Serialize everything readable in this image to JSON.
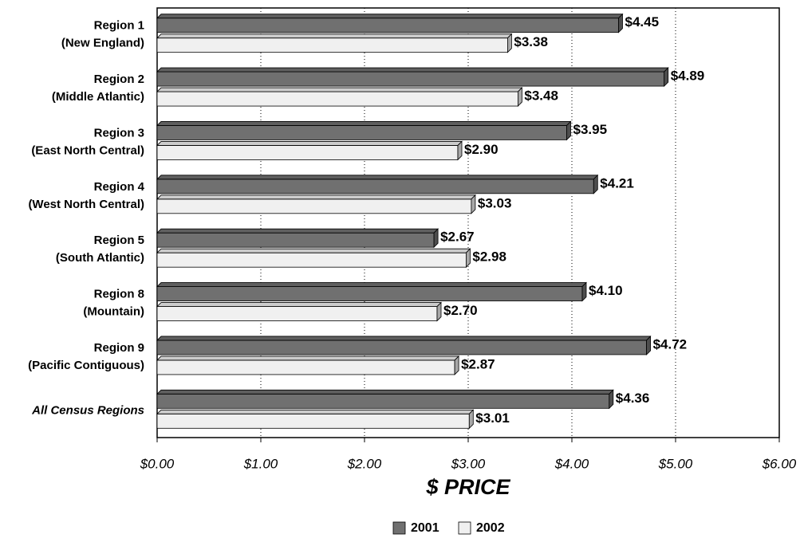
{
  "chart_data": {
    "type": "bar",
    "orientation": "horizontal",
    "x_label": "$ PRICE",
    "categories": [
      [
        "Region 1",
        "(New England)"
      ],
      [
        "Region 2",
        "(Middle Atlantic)"
      ],
      [
        "Region 3",
        "(East North Central)"
      ],
      [
        "Region 4",
        "(West North Central)"
      ],
      [
        "Region 5",
        "(South Atlantic)"
      ],
      [
        "Region 8",
        "(Mountain)"
      ],
      [
        "Region 9",
        "(Pacific Contiguous)"
      ],
      [
        "All Census Regions"
      ]
    ],
    "series": [
      {
        "name": "2001",
        "color": "#707070",
        "values": [
          4.45,
          4.89,
          3.95,
          4.21,
          2.67,
          4.1,
          4.72,
          4.36
        ],
        "value_labels": [
          "$4.45",
          "$4.89",
          "$3.95",
          "$4.21",
          "$2.67",
          "$4.10",
          "$4.72",
          "$4.36"
        ]
      },
      {
        "name": "2002",
        "color": "#f0f0f0",
        "values": [
          3.38,
          3.48,
          2.9,
          3.03,
          2.98,
          2.7,
          2.87,
          3.01
        ],
        "value_labels": [
          "$3.38",
          "$3.48",
          "$2.90",
          "$3.03",
          "$2.98",
          "$2.70",
          "$2.87",
          "$3.01"
        ]
      }
    ],
    "xlim": [
      0,
      6
    ],
    "xticks": [
      {
        "value": 0,
        "label": "$0.00"
      },
      {
        "value": 1,
        "label": "$1.00"
      },
      {
        "value": 2,
        "label": "$2.00"
      },
      {
        "value": 3,
        "label": "$3.00"
      },
      {
        "value": 4,
        "label": "$4.00"
      },
      {
        "value": 5,
        "label": "$5.00"
      },
      {
        "value": 6,
        "label": "$6.00"
      }
    ],
    "grid": true,
    "legend": "bottom"
  }
}
